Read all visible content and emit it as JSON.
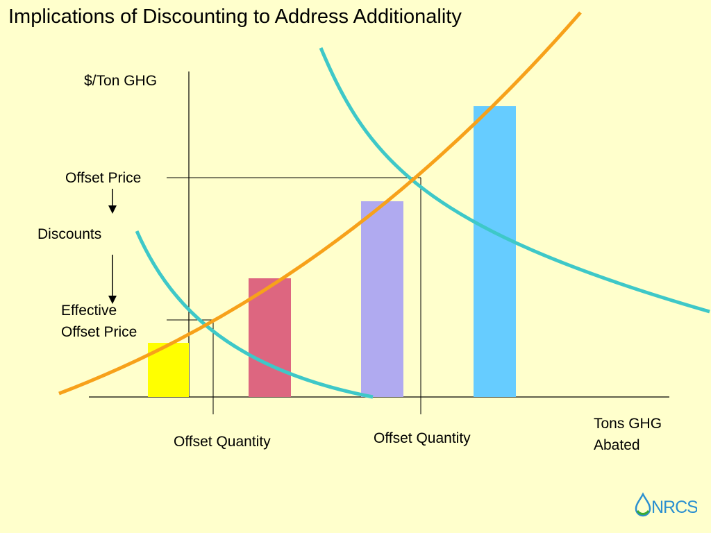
{
  "slide": {
    "title": "Implications of Discounting to Address Additionality"
  },
  "labels": {
    "y_axis": "$/Ton GHG",
    "offset_price": "Offset Price",
    "discounts": "Discounts",
    "effective_price_line1": "Effective",
    "effective_price_line2": "Offset Price",
    "offset_quantity_left": "Offset Quantity",
    "offset_quantity_right": "Offset Quantity",
    "x_axis_line1": "Tons GHG",
    "x_axis_line2": "Abated"
  },
  "colors": {
    "background": "#ffffcc",
    "supply_curve": "#f7a11a",
    "demand_curve": "#3ec8c8",
    "bar_1": "#ffff00",
    "bar_2": "#dd6680",
    "bar_3": "#b0aaf0",
    "bar_4": "#66ccff"
  },
  "logo": {
    "text": "NRCS",
    "icon": "water-drop-icon"
  }
}
